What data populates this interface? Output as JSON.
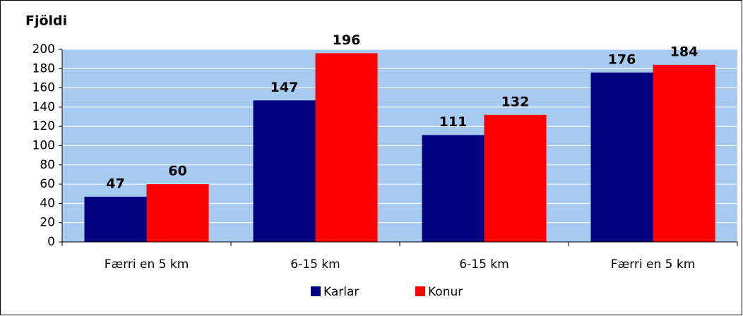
{
  "chart_data": {
    "type": "bar",
    "y_label": "Fjöldi",
    "categories": [
      "Færri en 5 km",
      "6-15 km",
      "6-15 km",
      "Færri en 5 km"
    ],
    "series": [
      {
        "name": "Karlar",
        "color": "#000080",
        "values": [
          47,
          147,
          111,
          176
        ]
      },
      {
        "name": "Konur",
        "color": "#ff0000",
        "values": [
          60,
          196,
          132,
          184
        ]
      }
    ],
    "ylim": [
      0,
      200
    ],
    "yticks": [
      0,
      20,
      40,
      60,
      80,
      100,
      120,
      140,
      160,
      180,
      200
    ],
    "grid": true,
    "legend": "bottom",
    "plot_background": "#a6caf0"
  }
}
